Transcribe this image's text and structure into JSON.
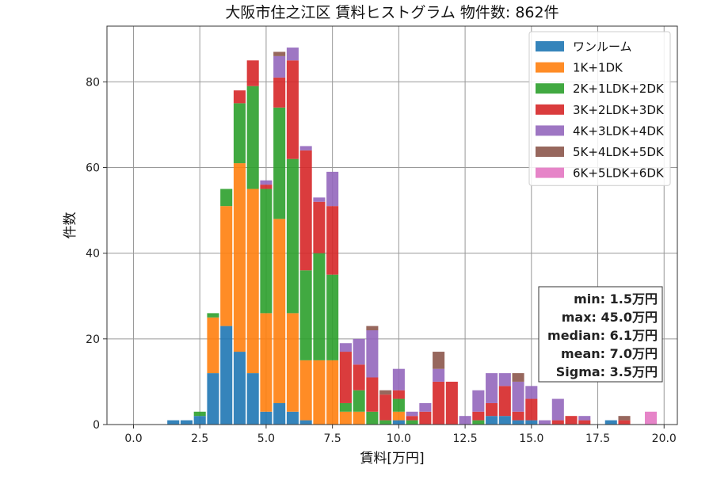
{
  "chart_data": {
    "type": "bar",
    "stacked": true,
    "title": "大阪市住之江区 賃料ヒストグラム  物件数: 862件",
    "xlabel": "賃料[万円]",
    "ylabel": "件数",
    "xlim": [
      -1.0,
      20.5
    ],
    "ylim": [
      0,
      93
    ],
    "bin_width": 0.5,
    "grid": true,
    "legend_position": "top-right",
    "x_ticks": [
      0.0,
      2.5,
      5.0,
      7.5,
      10.0,
      12.5,
      15.0,
      17.5,
      20.0
    ],
    "x_tick_labels": [
      "0.0",
      "2.5",
      "5.0",
      "7.5",
      "10.0",
      "12.5",
      "15.0",
      "17.5",
      "20.0"
    ],
    "y_ticks": [
      0,
      20,
      40,
      60,
      80
    ],
    "y_tick_labels": [
      "0",
      "20",
      "40",
      "60",
      "80"
    ],
    "x": [
      1.5,
      2.0,
      2.5,
      3.0,
      3.5,
      4.0,
      4.5,
      5.0,
      5.5,
      6.0,
      6.5,
      7.0,
      7.5,
      8.0,
      8.5,
      9.0,
      9.5,
      10.0,
      10.5,
      11.0,
      11.5,
      12.0,
      12.5,
      13.0,
      13.5,
      14.0,
      14.5,
      15.0,
      15.5,
      16.0,
      16.5,
      17.0,
      18.0,
      18.5,
      19.5
    ],
    "series": [
      {
        "name": "ワンルーム",
        "color": "#1f77b4",
        "values": [
          1,
          1,
          2,
          12,
          23,
          17,
          12,
          3,
          5,
          3,
          1,
          0,
          0,
          0,
          0,
          0,
          0,
          1,
          0,
          0,
          0,
          0,
          0,
          0,
          2,
          2,
          1,
          1,
          0,
          0,
          0,
          0,
          1,
          0,
          0
        ]
      },
      {
        "name": "1K+1DK",
        "color": "#ff7f0e",
        "values": [
          0,
          0,
          0,
          13,
          28,
          44,
          43,
          23,
          43,
          23,
          14,
          15,
          15,
          3,
          3,
          0,
          0,
          2,
          0,
          0,
          0,
          0,
          0,
          0,
          0,
          0,
          0,
          0,
          0,
          0,
          0,
          0,
          0,
          0,
          0
        ]
      },
      {
        "name": "2K+1LDK+2DK",
        "color": "#2ca02c",
        "values": [
          0,
          0,
          1,
          1,
          4,
          14,
          24,
          29,
          26,
          36,
          21,
          25,
          20,
          2,
          5,
          3,
          1,
          3,
          1,
          0,
          0,
          0,
          0,
          1,
          0,
          0,
          0,
          0,
          0,
          0,
          0,
          0,
          0,
          0,
          0
        ]
      },
      {
        "name": "3K+2LDK+3DK",
        "color": "#d62728",
        "values": [
          0,
          0,
          0,
          0,
          0,
          3,
          6,
          1,
          7,
          23,
          28,
          12,
          16,
          12,
          6,
          8,
          6,
          2,
          1,
          3,
          10,
          10,
          0,
          2,
          3,
          7,
          2,
          5,
          0,
          1,
          2,
          1,
          0,
          1,
          0
        ]
      },
      {
        "name": "4K+3LDK+4DK",
        "color": "#9467bd",
        "values": [
          0,
          0,
          0,
          0,
          0,
          0,
          0,
          1,
          5,
          3,
          1,
          1,
          8,
          2,
          6,
          11,
          0,
          5,
          1,
          2,
          3,
          0,
          2,
          5,
          7,
          3,
          7,
          3,
          1,
          5,
          0,
          1,
          0,
          0,
          0
        ]
      },
      {
        "name": "5K+4LDK+5DK",
        "color": "#8c564b",
        "values": [
          0,
          0,
          0,
          0,
          0,
          0,
          0,
          0,
          1,
          0,
          0,
          0,
          0,
          0,
          0,
          1,
          1,
          0,
          0,
          0,
          4,
          0,
          0,
          0,
          0,
          0,
          2,
          0,
          0,
          0,
          0,
          0,
          0,
          1,
          0
        ]
      },
      {
        "name": "6K+5LDK+6DK",
        "color": "#e377c2",
        "values": [
          0,
          0,
          0,
          0,
          0,
          0,
          0,
          0,
          0,
          0,
          0,
          0,
          0,
          0,
          0,
          0,
          0,
          0,
          0,
          0,
          0,
          0,
          0,
          0,
          0,
          0,
          0,
          0,
          0,
          0,
          0,
          0,
          0,
          0,
          3
        ]
      }
    ],
    "annotations": {
      "stats": [
        "min: 1.5万円",
        "max: 45.0万円",
        "median: 6.1万円",
        "mean: 7.0万円",
        "Sigma: 3.5万円"
      ]
    }
  }
}
